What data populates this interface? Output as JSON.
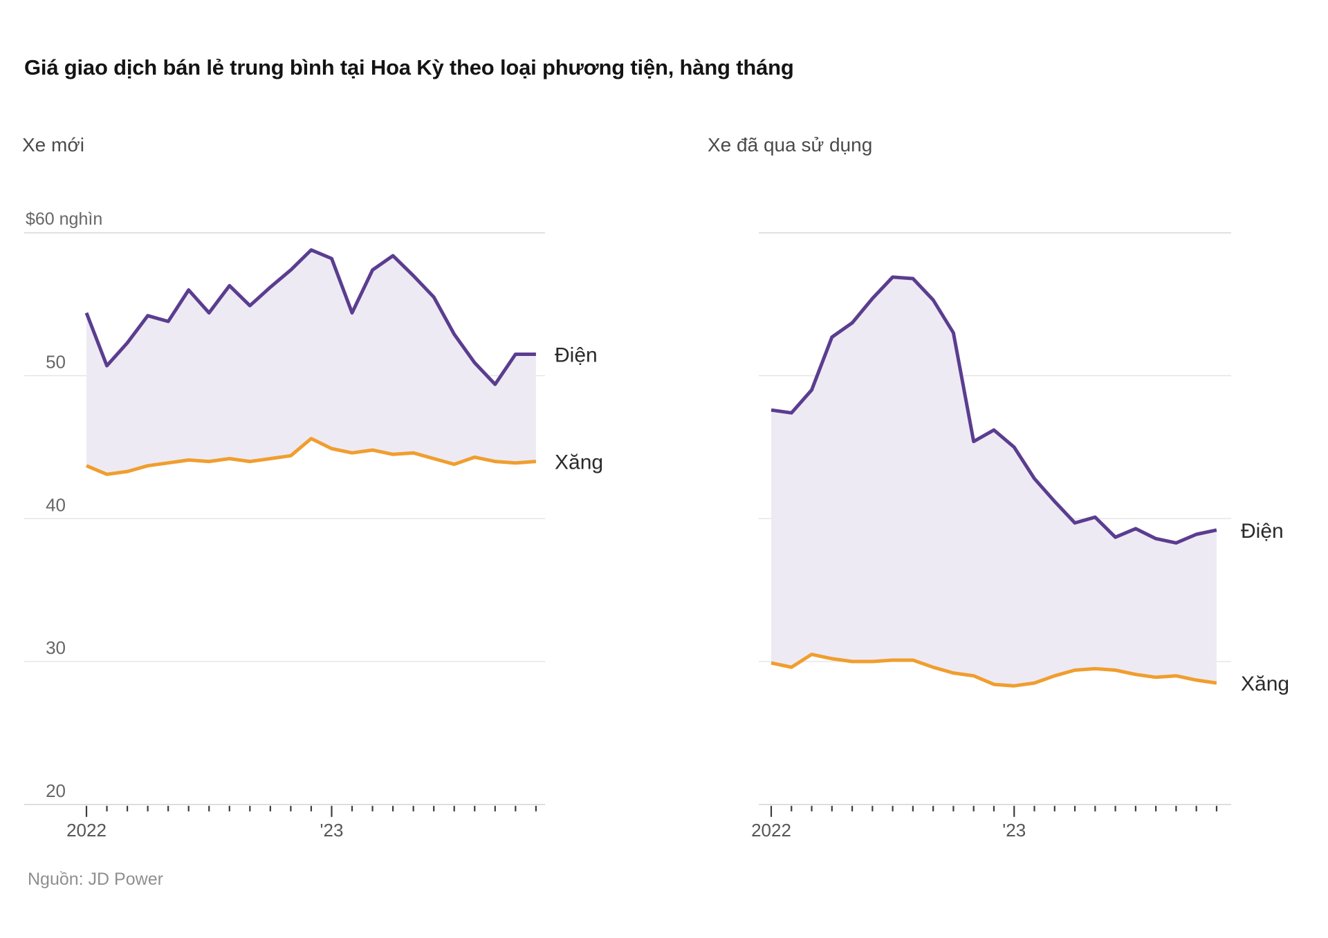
{
  "header": {
    "title": "Giá giao dịch bán lẻ trung bình tại Hoa Kỳ theo loại phương tiện, hàng tháng"
  },
  "footer": {
    "source": "Nguồn: JD Power"
  },
  "axis": {
    "unit_label": "$60 nghìn",
    "y_tick_labels": [
      "50",
      "40",
      "30",
      "20"
    ],
    "y_tick_values": [
      50,
      40,
      30,
      20
    ],
    "year_labels": [
      "2022",
      "'23"
    ]
  },
  "colors": {
    "electric_line": "#5b3d8f",
    "gasoline_line": "#f09e2e",
    "band_fill": "#edeaf4",
    "gridline": "#e5e5e5",
    "top_gridline": "#d9d9d9",
    "axis_line": "#d6d6d6",
    "tick": "#3c3c3c",
    "axis_text": "#666666",
    "year_text": "#555555",
    "series_label_text": "#2a2a2a"
  },
  "chart_data": [
    {
      "type": "line",
      "title": "Xe mới",
      "ylabel": "$ nghìn",
      "ylim": [
        20,
        62
      ],
      "grid": "horizontal",
      "legend_position": "right-of-line-end",
      "x": [
        "2022-01",
        "2022-02",
        "2022-03",
        "2022-04",
        "2022-05",
        "2022-06",
        "2022-07",
        "2022-08",
        "2022-09",
        "2022-10",
        "2022-11",
        "2022-12",
        "2023-01",
        "2023-02",
        "2023-03",
        "2023-04",
        "2023-05",
        "2023-06",
        "2023-07",
        "2023-08",
        "2023-09",
        "2023-10",
        "2023-11"
      ],
      "series": [
        {
          "name": "Điện",
          "color_key": "electric_line",
          "values": [
            54.4,
            50.7,
            52.3,
            54.2,
            53.8,
            56.0,
            54.4,
            56.3,
            54.9,
            56.2,
            57.4,
            58.8,
            58.2,
            54.4,
            57.4,
            58.4,
            57.0,
            55.5,
            52.9,
            50.9,
            49.4,
            51.5,
            51.5
          ]
        },
        {
          "name": "Xăng",
          "color_key": "gasoline_line",
          "values": [
            43.7,
            43.1,
            43.3,
            43.7,
            43.9,
            44.1,
            44.0,
            44.2,
            44.0,
            44.2,
            44.4,
            45.6,
            44.9,
            44.6,
            44.8,
            44.5,
            44.6,
            44.2,
            43.8,
            44.3,
            44.0,
            43.9,
            44.0
          ]
        }
      ]
    },
    {
      "type": "line",
      "title": "Xe đã qua sử dụng",
      "ylabel": "$ nghìn",
      "ylim": [
        20,
        62
      ],
      "grid": "horizontal",
      "legend_position": "right-of-line-end",
      "x": [
        "2022-01",
        "2022-02",
        "2022-03",
        "2022-04",
        "2022-05",
        "2022-06",
        "2022-07",
        "2022-08",
        "2022-09",
        "2022-10",
        "2022-11",
        "2022-12",
        "2023-01",
        "2023-02",
        "2023-03",
        "2023-04",
        "2023-05",
        "2023-06",
        "2023-07",
        "2023-08",
        "2023-09",
        "2023-10",
        "2023-11"
      ],
      "series": [
        {
          "name": "Điện",
          "color_key": "electric_line",
          "values": [
            47.6,
            47.4,
            49.0,
            52.7,
            53.7,
            55.4,
            56.9,
            56.8,
            55.3,
            53.0,
            45.4,
            46.2,
            45.0,
            42.8,
            41.2,
            39.7,
            40.1,
            38.7,
            39.3,
            38.6,
            38.3,
            38.9,
            39.2
          ]
        },
        {
          "name": "Xăng",
          "color_key": "gasoline_line",
          "values": [
            29.9,
            29.6,
            30.5,
            30.2,
            30.0,
            30.0,
            30.1,
            30.1,
            29.6,
            29.2,
            29.0,
            28.4,
            28.3,
            28.5,
            29.0,
            29.4,
            29.5,
            29.4,
            29.1,
            28.9,
            29.0,
            28.7,
            28.5
          ]
        }
      ]
    }
  ]
}
